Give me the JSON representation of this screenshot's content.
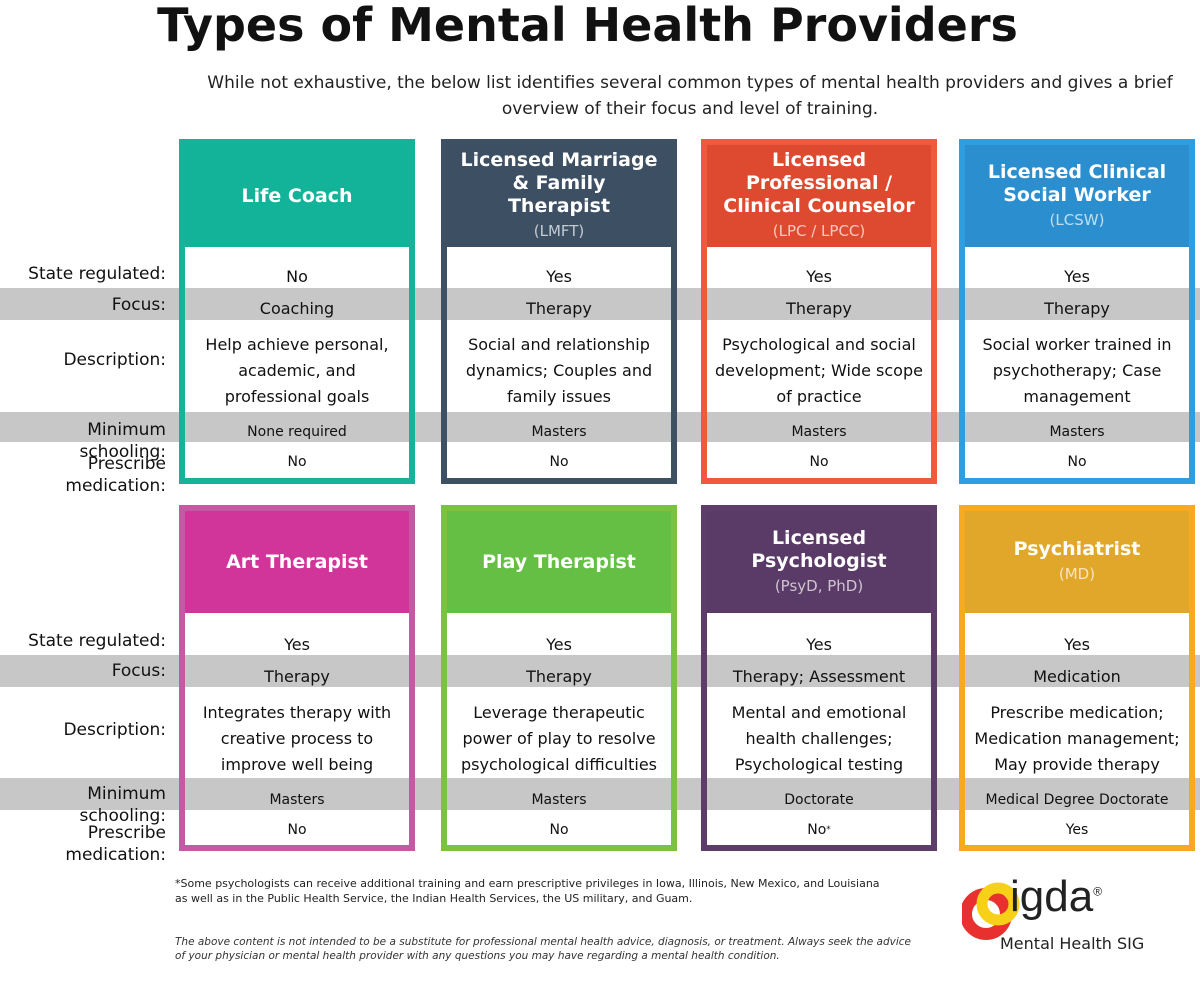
{
  "title": "Types of Mental Health Providers",
  "intro": "While not exhaustive, the below list identifies several common types of mental health providers and gives a brief overview of their focus and level of training.",
  "row_labels": {
    "state": "State regulated:",
    "focus": "Focus:",
    "description": "Description:",
    "schooling": "Minimum schooling:",
    "medication": "Prescribe medication:"
  },
  "providers": [
    {
      "name": "Life Coach",
      "abbr": "",
      "color": "#16b29a",
      "head": "#12b399",
      "state": "No",
      "focus": "Coaching",
      "description": "Help achieve personal, academic, and professional goals",
      "schooling": "None required",
      "medication": "No"
    },
    {
      "name": "Licensed Marriage & Family Therapist",
      "abbr": "(LMFT)",
      "color": "#3e5164",
      "head": "#3d4f63",
      "state": "Yes",
      "focus": "Therapy",
      "description": "Social and relationship dynamics; Couples and family issues",
      "schooling": "Masters",
      "medication": "No"
    },
    {
      "name": "Licensed Professional / Clinical Counselor",
      "abbr": "(LPC / LPCC)",
      "color": "#f05a3c",
      "head": "#dd4a2f",
      "state": "Yes",
      "focus": "Therapy",
      "description": "Psychological and social development; Wide scope of practice",
      "schooling": "Masters",
      "medication": "No"
    },
    {
      "name": "Licensed Clinical Social Worker",
      "abbr": "(LCSW)",
      "color": "#2f9ee0",
      "head": "#2b8fcf",
      "state": "Yes",
      "focus": "Therapy",
      "description": "Social worker trained in psychotherapy; Case management",
      "schooling": "Masters",
      "medication": "No"
    },
    {
      "name": "Art Therapist",
      "abbr": "",
      "color": "#c45aa3",
      "head": "#d2359a",
      "state": "Yes",
      "focus": "Therapy",
      "description": "Integrates therapy with creative process to improve well being",
      "schooling": "Masters",
      "medication": "No"
    },
    {
      "name": "Play Therapist",
      "abbr": "",
      "color": "#7cc242",
      "head": "#65bf45",
      "state": "Yes",
      "focus": "Therapy",
      "description": "Leverage therapeutic power of play to resolve psychological difficulties",
      "schooling": "Masters",
      "medication": "No"
    },
    {
      "name": "Licensed Psychologist",
      "abbr": "(PsyD, PhD)",
      "color": "#5e3d6b",
      "head": "#5a3a66",
      "state": "Yes",
      "focus": "Therapy; Assessment",
      "description": "Mental and emotional health challenges; Psychological testing",
      "schooling": "Doctorate",
      "medication": "No",
      "medication_note": "*"
    },
    {
      "name": "Psychiatrist",
      "abbr": "(MD)",
      "color": "#f5aa1f",
      "head": "#e0a72b",
      "state": "Yes",
      "focus": "Medication",
      "description": "Prescribe medication; Medication management; May provide therapy",
      "schooling": "Medical Degree Doctorate",
      "medication": "Yes"
    }
  ],
  "footnote": "*Some psychologists can receive additional training and earn prescriptive privileges in Iowa, Illinois, New Mexico, and Louisiana as well as in the Public Health Service, the Indian Health Services, the US military, and Guam.",
  "disclaimer": "The above content is not intended to be a substitute for professional mental health advice, diagnosis, or treatment. Always seek the advice of your physician or mental health provider with any questions you may have regarding a mental health condition.",
  "logo": {
    "word": "igda",
    "reg": "®",
    "subtitle": "Mental Health SIG",
    "colors": [
      "#e8312f",
      "#f7d117"
    ]
  }
}
